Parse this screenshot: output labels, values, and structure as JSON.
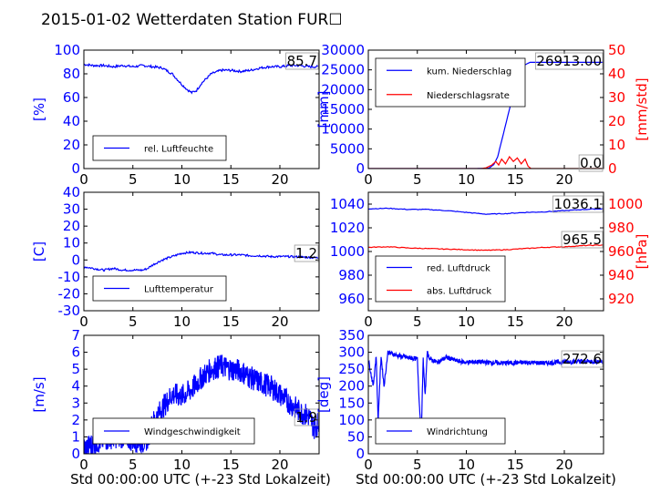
{
  "title": "2015-01-02 Wetterdaten Station FUR",
  "title_glyph": "☐",
  "colors": {
    "primary": "#0000ff",
    "secondary": "#ff0000",
    "frame": "#000000"
  },
  "xlabel": "Std 00:00:00 UTC (+-23 Std Lokalzeit)",
  "chart_data": [
    {
      "id": "humidity",
      "type": "line",
      "ylabel": "[%]",
      "xlim": [
        0,
        24
      ],
      "ylim": [
        0,
        100
      ],
      "xticks": [
        0,
        5,
        10,
        15,
        20
      ],
      "yticks": [
        0,
        20,
        40,
        60,
        80,
        100
      ],
      "last_value": "85.7",
      "legend_placement": "bottom-left",
      "series": [
        {
          "name": "rel. Luftfeuchte",
          "axis": "left",
          "x": [
            0,
            1,
            2,
            3,
            4,
            5,
            6,
            7,
            8,
            9,
            10,
            10.5,
            11,
            11.5,
            12,
            13,
            14,
            15,
            16,
            17,
            18,
            19,
            20,
            21,
            22,
            23,
            24
          ],
          "y": [
            88,
            87,
            87,
            86,
            87,
            86,
            87,
            86,
            85,
            80,
            71,
            67,
            64,
            66,
            72,
            80,
            83,
            83,
            82,
            83,
            85,
            86,
            86,
            87,
            87,
            86,
            86
          ]
        }
      ]
    },
    {
      "id": "precipitation",
      "type": "line",
      "ylabel": "[mm]",
      "ylabel_right": "[mm/std]",
      "xlim": [
        0,
        24
      ],
      "ylim": [
        0,
        30000
      ],
      "ylim_right": [
        0,
        50
      ],
      "xticks": [
        0,
        5,
        10,
        15,
        20
      ],
      "yticks": [
        0,
        5000,
        10000,
        15000,
        20000,
        25000,
        30000
      ],
      "yticks_right": [
        0,
        10,
        20,
        30,
        40,
        50
      ],
      "last_value": "26913.00",
      "last_value_right": "0.0",
      "legend_placement": "top-left",
      "series": [
        {
          "name": "kum. Niederschlag",
          "axis": "left",
          "x": [
            0,
            11,
            12.3,
            12.8,
            13.2,
            13.6,
            14,
            14.5,
            15,
            15.5,
            16,
            16.5,
            17,
            24
          ],
          "y": [
            0,
            0,
            100,
            1000,
            3000,
            7000,
            11000,
            16000,
            21000,
            24500,
            26300,
            26913,
            26913,
            26913
          ]
        },
        {
          "name": "Niederschlagsrate",
          "axis": "right",
          "x": [
            0,
            11.5,
            12,
            12.6,
            13,
            13.3,
            13.6,
            14,
            14.4,
            14.8,
            15.2,
            15.6,
            16,
            16.3,
            16.6,
            17,
            18,
            24
          ],
          "y": [
            0,
            0,
            0.3,
            1.5,
            3,
            1.5,
            4,
            2,
            5,
            3,
            4.5,
            2,
            4,
            1,
            0,
            0,
            0,
            0
          ]
        }
      ]
    },
    {
      "id": "temperature",
      "type": "line",
      "ylabel": "[C]",
      "xlim": [
        0,
        24
      ],
      "ylim": [
        -30,
        40
      ],
      "xticks": [
        0,
        5,
        10,
        15,
        20
      ],
      "yticks": [
        -30,
        -20,
        -10,
        0,
        10,
        20,
        30,
        40
      ],
      "last_value": "1.2",
      "legend_placement": "bottom-left",
      "series": [
        {
          "name": "Lufttemperatur",
          "axis": "left",
          "x": [
            0,
            1,
            2,
            3,
            4,
            5,
            6,
            6.5,
            7,
            8,
            9,
            10,
            11,
            12,
            13,
            14,
            15,
            16,
            17,
            18,
            19,
            20,
            21,
            22,
            23,
            24
          ],
          "y": [
            -4,
            -5,
            -6,
            -5,
            -6,
            -6,
            -6,
            -5,
            -3,
            0,
            2,
            4,
            4.5,
            4,
            4,
            3,
            3,
            3,
            2.5,
            2.5,
            2,
            2,
            2,
            1.8,
            1.5,
            1.2
          ]
        }
      ]
    },
    {
      "id": "pressure",
      "type": "line",
      "ylabel_right": "[hPa]",
      "xlim": [
        0,
        24
      ],
      "ylim": [
        950,
        1050
      ],
      "ylim_right": [
        910,
        1010
      ],
      "xticks": [
        0,
        5,
        10,
        15,
        20
      ],
      "yticks": [
        960,
        980,
        1000,
        1020,
        1040
      ],
      "yticks_right": [
        920,
        940,
        960,
        980,
        1000
      ],
      "last_value": "1036.1",
      "last_value_right": "965.5",
      "legend_placement": "bottom-left",
      "series": [
        {
          "name": "red. Luftdruck",
          "axis": "left",
          "x": [
            0,
            2,
            4,
            6,
            8,
            10,
            12,
            14,
            16,
            18,
            20,
            22,
            24
          ],
          "y": [
            1036,
            1036.5,
            1035.5,
            1035.5,
            1034.5,
            1033,
            1031.5,
            1032,
            1033,
            1033.5,
            1034.5,
            1035.5,
            1036.1
          ]
        },
        {
          "name": "abs. Luftdruck",
          "axis": "right",
          "x": [
            0,
            2,
            4,
            6,
            8,
            10,
            12,
            14,
            16,
            18,
            20,
            22,
            24
          ],
          "y": [
            963.5,
            964,
            963,
            962.5,
            962,
            961.5,
            961,
            961.5,
            962.5,
            963.5,
            964,
            965,
            965.5
          ]
        }
      ]
    },
    {
      "id": "windspeed",
      "type": "line",
      "ylabel": "[m/s]",
      "xlim": [
        0,
        24
      ],
      "ylim": [
        0,
        7
      ],
      "xticks": [
        0,
        5,
        10,
        15,
        20
      ],
      "yticks": [
        0,
        1,
        2,
        3,
        4,
        5,
        6,
        7
      ],
      "last_value": "1.9",
      "legend_placement": "bottom-left",
      "series": [
        {
          "name": "Windgeschwindigkeit",
          "axis": "left",
          "x": [
            0,
            1,
            2,
            3,
            4,
            5,
            6,
            6.5,
            7,
            8,
            9,
            10,
            11,
            12,
            13,
            14,
            15,
            16,
            17,
            18,
            19,
            20,
            21,
            22,
            23,
            23.5,
            24
          ],
          "y": [
            0.3,
            0.6,
            0.8,
            1,
            1,
            0.8,
            0.7,
            0.9,
            1.8,
            2.7,
            3.5,
            3.4,
            3.8,
            4.5,
            5,
            5.2,
            5,
            4.9,
            4.5,
            4.2,
            4,
            3.5,
            3,
            2.5,
            2.2,
            1.5,
            1.9
          ]
        }
      ]
    },
    {
      "id": "winddir",
      "type": "line",
      "ylabel": "[deg]",
      "xlim": [
        0,
        24
      ],
      "ylim": [
        0,
        350
      ],
      "xticks": [
        0,
        5,
        10,
        15,
        20
      ],
      "yticks": [
        0,
        50,
        100,
        150,
        200,
        250,
        300,
        350
      ],
      "last_value": "272.6",
      "legend_placement": "bottom-left",
      "series": [
        {
          "name": "Windrichtung",
          "axis": "left",
          "x": [
            0,
            0.5,
            0.8,
            1,
            1.3,
            1.6,
            2,
            3,
            4,
            5,
            5.2,
            5.4,
            5.6,
            5.8,
            6,
            6.3,
            7,
            8,
            9,
            10,
            11,
            12,
            14,
            16,
            18,
            20,
            22,
            24
          ],
          "y": [
            280,
            200,
            290,
            100,
            290,
            200,
            300,
            290,
            285,
            280,
            150,
            60,
            280,
            170,
            300,
            280,
            270,
            285,
            275,
            270,
            272,
            270,
            268,
            270,
            268,
            272,
            273,
            272.6
          ]
        }
      ]
    }
  ]
}
